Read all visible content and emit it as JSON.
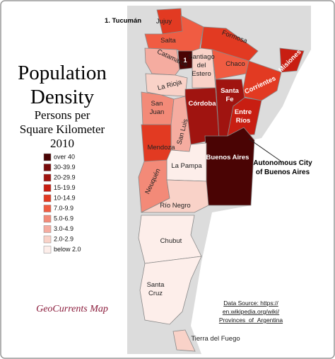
{
  "title": [
    "Population",
    "Density"
  ],
  "subtitle": [
    "Persons per",
    "Square Kilometer",
    "2010"
  ],
  "footnote": "1. Tucumán",
  "legend": [
    {
      "label": "over 40",
      "color": "#4a0404"
    },
    {
      "label": "30-39.9",
      "color": "#780a0a"
    },
    {
      "label": "20-29.9",
      "color": "#a01410"
    },
    {
      "label": "15-19.9",
      "color": "#c81e12"
    },
    {
      "label": "10-14.9",
      "color": "#e23a22"
    },
    {
      "label": "7.0-9.9",
      "color": "#f05c42"
    },
    {
      "label": "5.0-6.9",
      "color": "#f38a78"
    },
    {
      "label": "3.0-4.9",
      "color": "#f5aca0"
    },
    {
      "label": "2.0-2.9",
      "color": "#f9d2c8"
    },
    {
      "label": "below 2.0",
      "color": "#fdeeea"
    }
  ],
  "provinces": [
    {
      "name": [
        "Jujuy"
      ],
      "color": "#e23a22"
    },
    {
      "name": [
        "Salta"
      ],
      "color": "#f05c42"
    },
    {
      "name": [
        "Formosa"
      ],
      "color": "#e23a22"
    },
    {
      "name": [
        "1"
      ],
      "color": "#4a0404"
    },
    {
      "name": [
        "Catamarca"
      ],
      "color": "#f5aca0"
    },
    {
      "name": [
        "Santiago",
        "del",
        "Estero"
      ],
      "color": "#f9d2c8"
    },
    {
      "name": [
        "Chaco"
      ],
      "color": "#f05c42"
    },
    {
      "name": [
        "Misiones"
      ],
      "color": "#c81e12"
    },
    {
      "name": [
        "Corrientes"
      ],
      "color": "#e23a22"
    },
    {
      "name": [
        "La Rioja"
      ],
      "color": "#f9d2c8"
    },
    {
      "name": [
        "San",
        "Juan"
      ],
      "color": "#f38a78"
    },
    {
      "name": [
        "Córdoba"
      ],
      "color": "#a01410"
    },
    {
      "name": [
        "Santa",
        "Fe"
      ],
      "color": "#a01410"
    },
    {
      "name": [
        "Entre",
        "Ríos"
      ],
      "color": "#c81e12"
    },
    {
      "name": [
        "San Luis"
      ],
      "color": "#f5aca0"
    },
    {
      "name": [
        "Mendoza"
      ],
      "color": "#e23a22"
    },
    {
      "name": [
        "Buenos Aires"
      ],
      "color": "#4a0404"
    },
    {
      "name": [
        "La Pampa"
      ],
      "color": "#fdeeea"
    },
    {
      "name": [
        "Neuquén"
      ],
      "color": "#f38a78"
    },
    {
      "name": [
        "Río Negro"
      ],
      "color": "#f9d2c8"
    },
    {
      "name": [
        "Chubut"
      ],
      "color": "#fdeeea"
    },
    {
      "name": [
        "Santa",
        "Cruz"
      ],
      "color": "#fdeeea"
    },
    {
      "name": [
        "Tierra del Fuego"
      ],
      "color": "#f9d2c8"
    }
  ],
  "callout": [
    "Autonomous City",
    "of Buenos Aires"
  ],
  "credit": "GeoCurrents Map",
  "source": [
    "Data Source: https://",
    "en.wikipedia.org/wiki/",
    "Provinces_of_Argentina"
  ]
}
